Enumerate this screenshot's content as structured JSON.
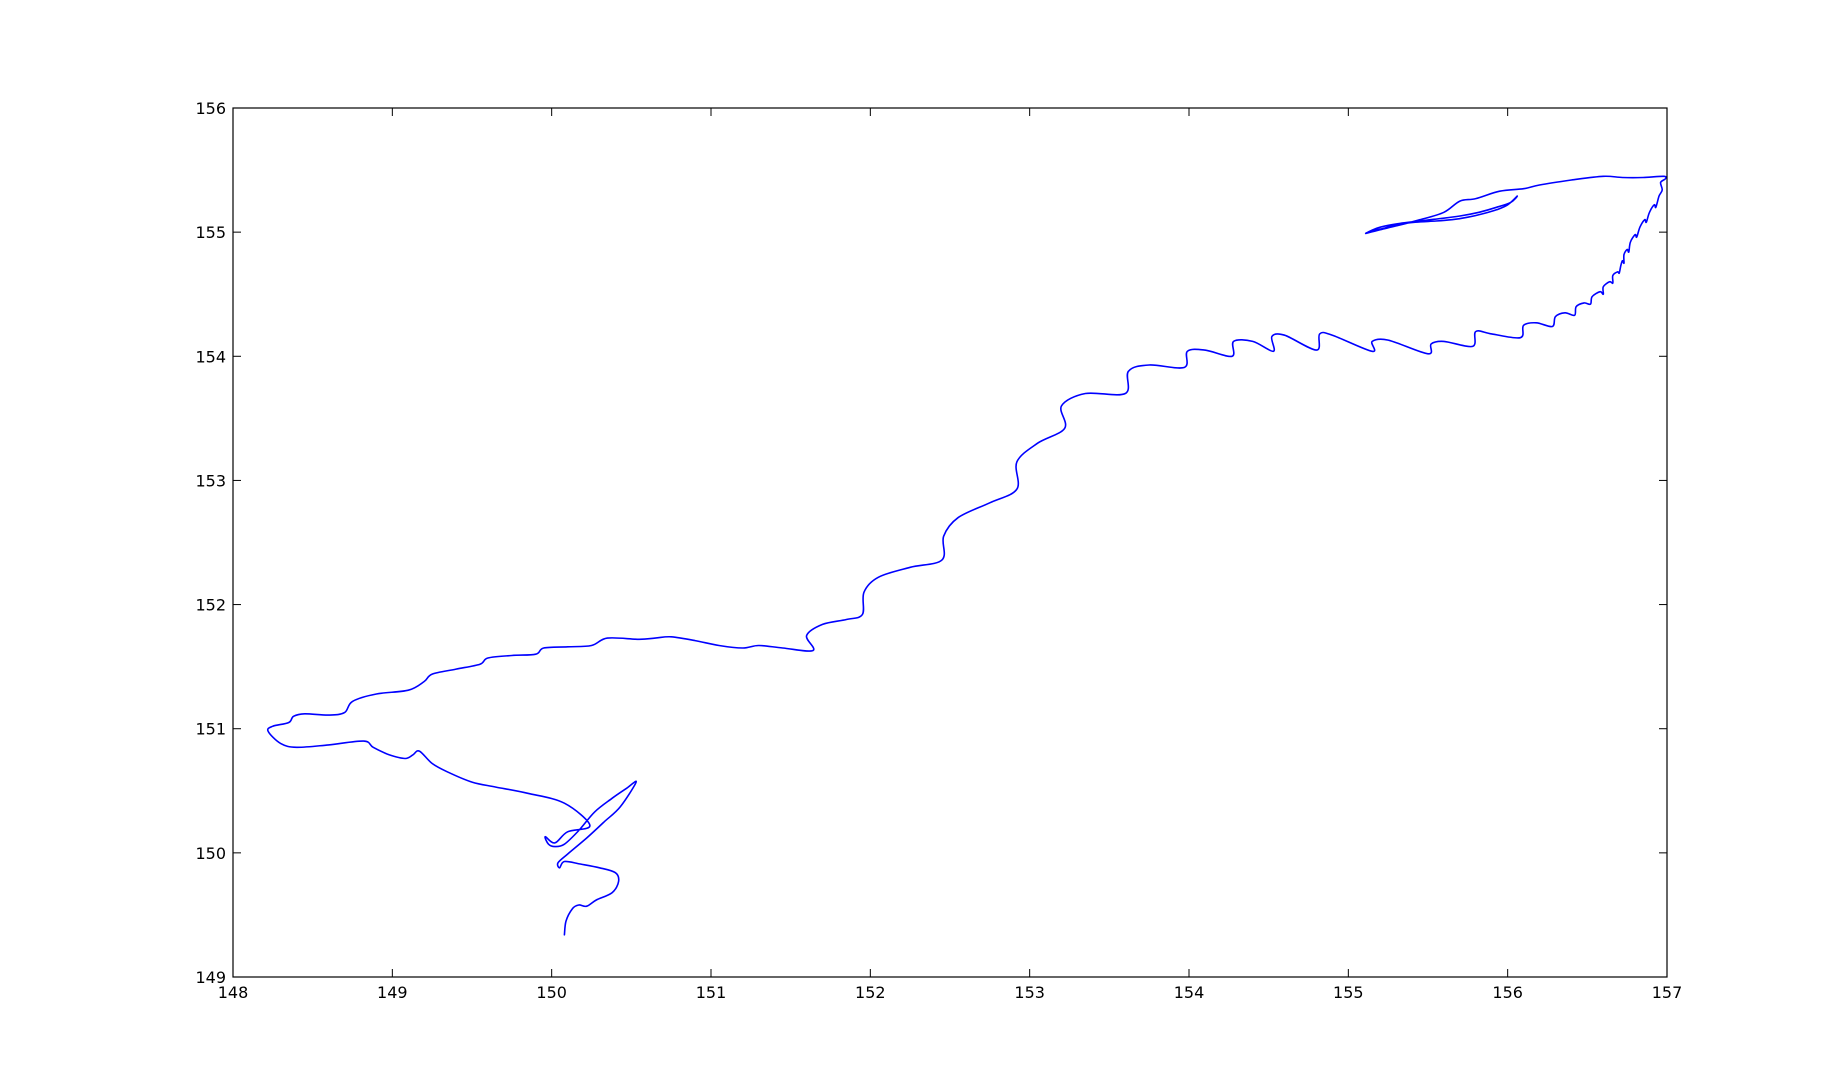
{
  "chart_data": {
    "type": "line",
    "title": "",
    "xlabel": "",
    "ylabel": "",
    "xlim": [
      148,
      157
    ],
    "ylim": [
      149,
      156
    ],
    "x_ticks": [
      "148",
      "149",
      "150",
      "151",
      "152",
      "153",
      "154",
      "155",
      "156",
      "157"
    ],
    "y_ticks": [
      "149",
      "150",
      "151",
      "152",
      "153",
      "154",
      "155",
      "156"
    ],
    "grid": false,
    "legend": "none",
    "line_color": "#0000ff",
    "series": [
      {
        "points": [
          [
            150.08,
            149.34
          ],
          [
            150.09,
            149.45
          ],
          [
            150.13,
            149.55
          ],
          [
            150.17,
            149.58
          ],
          [
            150.22,
            149.57
          ],
          [
            150.28,
            149.62
          ],
          [
            150.38,
            149.68
          ],
          [
            150.42,
            149.77
          ],
          [
            150.4,
            149.84
          ],
          [
            150.3,
            149.88
          ],
          [
            150.18,
            149.91
          ],
          [
            150.08,
            149.93
          ],
          [
            150.05,
            149.88
          ],
          [
            150.04,
            149.92
          ],
          [
            150.1,
            149.99
          ],
          [
            150.22,
            150.12
          ],
          [
            150.33,
            150.25
          ],
          [
            150.43,
            150.37
          ],
          [
            150.53,
            150.57
          ],
          [
            150.47,
            150.52
          ],
          [
            150.38,
            150.44
          ],
          [
            150.27,
            150.33
          ],
          [
            150.17,
            150.18
          ],
          [
            150.08,
            150.07
          ],
          [
            150.02,
            150.05
          ],
          [
            149.98,
            150.07
          ],
          [
            149.96,
            150.13
          ],
          [
            150.02,
            150.08
          ],
          [
            150.1,
            150.17
          ],
          [
            150.24,
            150.22
          ],
          [
            150.08,
            150.4
          ],
          [
            149.85,
            150.48
          ],
          [
            149.65,
            150.53
          ],
          [
            149.5,
            150.57
          ],
          [
            149.35,
            150.65
          ],
          [
            149.25,
            150.72
          ],
          [
            149.17,
            150.82
          ],
          [
            149.13,
            150.79
          ],
          [
            149.08,
            150.76
          ],
          [
            148.98,
            150.79
          ],
          [
            148.88,
            150.85
          ],
          [
            148.82,
            150.9
          ],
          [
            148.6,
            150.87
          ],
          [
            148.4,
            150.85
          ],
          [
            148.3,
            150.88
          ],
          [
            148.22,
            150.98
          ],
          [
            148.25,
            151.02
          ],
          [
            148.35,
            151.05
          ],
          [
            148.38,
            151.1
          ],
          [
            148.45,
            151.12
          ],
          [
            148.6,
            151.11
          ],
          [
            148.7,
            151.13
          ],
          [
            148.75,
            151.22
          ],
          [
            148.9,
            151.28
          ],
          [
            149.1,
            151.31
          ],
          [
            149.2,
            151.38
          ],
          [
            149.25,
            151.44
          ],
          [
            149.4,
            151.48
          ],
          [
            149.55,
            151.52
          ],
          [
            149.6,
            151.57
          ],
          [
            149.75,
            151.59
          ],
          [
            149.9,
            151.6
          ],
          [
            149.95,
            151.65
          ],
          [
            150.1,
            151.66
          ],
          [
            150.25,
            151.67
          ],
          [
            150.35,
            151.73
          ],
          [
            150.55,
            151.72
          ],
          [
            150.65,
            151.73
          ],
          [
            150.75,
            151.74
          ],
          [
            150.9,
            151.71
          ],
          [
            151.05,
            151.67
          ],
          [
            151.2,
            151.65
          ],
          [
            151.3,
            151.67
          ],
          [
            151.45,
            151.65
          ],
          [
            151.64,
            151.63
          ],
          [
            151.6,
            151.75
          ],
          [
            151.7,
            151.84
          ],
          [
            151.85,
            151.88
          ],
          [
            151.95,
            151.92
          ],
          [
            151.96,
            152.1
          ],
          [
            152.05,
            152.22
          ],
          [
            152.25,
            152.3
          ],
          [
            152.45,
            152.36
          ],
          [
            152.46,
            152.55
          ],
          [
            152.55,
            152.7
          ],
          [
            152.75,
            152.82
          ],
          [
            152.92,
            152.93
          ],
          [
            152.92,
            153.15
          ],
          [
            153.05,
            153.3
          ],
          [
            153.22,
            153.42
          ],
          [
            153.2,
            153.6
          ],
          [
            153.35,
            153.7
          ],
          [
            153.6,
            153.7
          ],
          [
            153.62,
            153.88
          ],
          [
            153.75,
            153.93
          ],
          [
            153.97,
            153.91
          ],
          [
            153.99,
            154.04
          ],
          [
            154.1,
            154.05
          ],
          [
            154.27,
            154.0
          ],
          [
            154.28,
            154.12
          ],
          [
            154.4,
            154.12
          ],
          [
            154.53,
            154.04
          ],
          [
            154.52,
            154.16
          ],
          [
            154.6,
            154.17
          ],
          [
            154.8,
            154.05
          ],
          [
            154.82,
            154.18
          ],
          [
            154.9,
            154.17
          ],
          [
            155.15,
            154.04
          ],
          [
            155.15,
            154.12
          ],
          [
            155.25,
            154.13
          ],
          [
            155.5,
            154.02
          ],
          [
            155.52,
            154.1
          ],
          [
            155.6,
            154.12
          ],
          [
            155.78,
            154.08
          ],
          [
            155.8,
            154.2
          ],
          [
            155.9,
            154.18
          ],
          [
            156.08,
            154.15
          ],
          [
            156.1,
            154.25
          ],
          [
            156.18,
            154.27
          ],
          [
            156.28,
            154.24
          ],
          [
            156.3,
            154.32
          ],
          [
            156.36,
            154.35
          ],
          [
            156.42,
            154.33
          ],
          [
            156.43,
            154.4
          ],
          [
            156.48,
            154.43
          ],
          [
            156.52,
            154.42
          ],
          [
            156.53,
            154.48
          ],
          [
            156.58,
            154.52
          ],
          [
            156.6,
            154.5
          ],
          [
            156.6,
            154.56
          ],
          [
            156.64,
            154.6
          ],
          [
            156.66,
            154.59
          ],
          [
            156.66,
            154.65
          ],
          [
            156.69,
            154.68
          ],
          [
            156.7,
            154.67
          ],
          [
            156.71,
            154.73
          ],
          [
            156.72,
            154.77
          ],
          [
            156.73,
            154.75
          ],
          [
            156.73,
            154.82
          ],
          [
            156.75,
            154.86
          ],
          [
            156.76,
            154.84
          ],
          [
            156.77,
            154.92
          ],
          [
            156.8,
            154.98
          ],
          [
            156.81,
            154.96
          ],
          [
            156.83,
            155.04
          ],
          [
            156.86,
            155.1
          ],
          [
            156.87,
            155.08
          ],
          [
            156.89,
            155.16
          ],
          [
            156.92,
            155.22
          ],
          [
            156.93,
            155.2
          ],
          [
            156.95,
            155.29
          ],
          [
            156.97,
            155.34
          ],
          [
            156.96,
            155.4
          ],
          [
            156.99,
            155.43
          ],
          [
            156.98,
            155.45
          ],
          [
            156.85,
            155.44
          ],
          [
            156.72,
            155.44
          ],
          [
            156.6,
            155.45
          ],
          [
            156.4,
            155.42
          ],
          [
            156.2,
            155.38
          ],
          [
            156.1,
            155.35
          ],
          [
            155.95,
            155.33
          ],
          [
            155.8,
            155.27
          ],
          [
            155.7,
            155.25
          ],
          [
            155.6,
            155.16
          ],
          [
            155.45,
            155.1
          ],
          [
            155.3,
            155.05
          ],
          [
            155.2,
            155.02
          ],
          [
            155.11,
            154.99
          ],
          [
            155.15,
            155.01
          ],
          [
            155.22,
            155.03
          ],
          [
            155.3,
            155.06
          ],
          [
            155.42,
            155.08
          ],
          [
            155.55,
            155.09
          ],
          [
            155.65,
            155.1
          ],
          [
            155.75,
            155.12
          ],
          [
            155.85,
            155.15
          ],
          [
            155.93,
            155.18
          ],
          [
            156.0,
            155.22
          ],
          [
            156.06,
            155.29
          ],
          [
            156.02,
            155.24
          ],
          [
            155.93,
            155.2
          ],
          [
            155.82,
            155.16
          ],
          [
            155.7,
            155.13
          ],
          [
            155.58,
            155.11
          ],
          [
            155.45,
            155.09
          ],
          [
            155.32,
            155.07
          ],
          [
            155.2,
            155.04
          ],
          [
            155.14,
            155.01
          ],
          [
            155.11,
            154.99
          ]
        ]
      }
    ]
  }
}
